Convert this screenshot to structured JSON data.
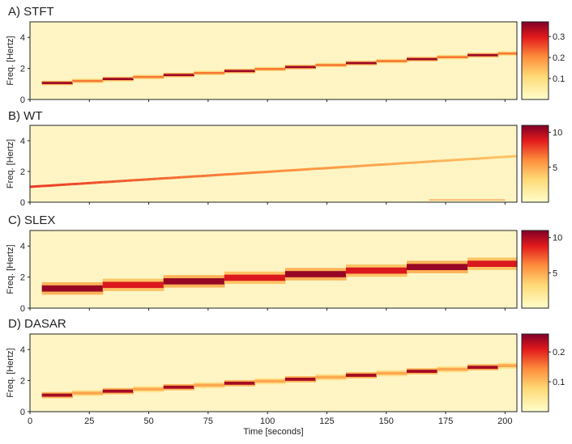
{
  "chart_data": [
    {
      "type": "heatmap",
      "title": "A) STFT",
      "ylabel": "Freq. [Hertz]",
      "yticks": [
        0,
        2,
        4
      ],
      "ylim": [
        0,
        5
      ],
      "xlim": [
        0,
        205
      ],
      "ridge": {
        "kind": "steps",
        "step_width": 12.8,
        "start_freq": 1.0,
        "end_freq": 3.0,
        "thickness_hz": 0.14,
        "max_intensity": 0.35,
        "alt_intensity": 0.22
      },
      "colorbar": {
        "min": 0,
        "max": 0.37,
        "ticks": [
          {
            "value": 0.1,
            "label": "0.1"
          },
          {
            "value": 0.2,
            "label": "0.2"
          },
          {
            "value": 0.3,
            "label": "0.3"
          }
        ]
      }
    },
    {
      "type": "heatmap",
      "title": "B) WT",
      "ylabel": "Freq. [Hertz]",
      "yticks": [
        0,
        2,
        4
      ],
      "ylim": [
        0,
        5
      ],
      "xlim": [
        0,
        205
      ],
      "ridge": {
        "kind": "smooth",
        "start_freq": 1.0,
        "end_freq": 3.0,
        "thickness_hz": 0.12,
        "max_intensity": 8,
        "end_intensity": 4
      },
      "colorbar": {
        "min": 0,
        "max": 11,
        "ticks": [
          {
            "value": 5,
            "label": "5"
          },
          {
            "value": 10,
            "label": "10"
          }
        ]
      }
    },
    {
      "type": "heatmap",
      "title": "C) SLEX",
      "ylabel": "Freq. [Hertz]",
      "yticks": [
        0,
        2,
        4
      ],
      "ylim": [
        0,
        5
      ],
      "xlim": [
        0,
        205
      ],
      "ridge": {
        "kind": "steps",
        "step_width": 25.6,
        "start_freq": 1.15,
        "end_freq": 2.95,
        "thickness_hz": 0.4,
        "max_intensity": 10.5,
        "alt_intensity": 9
      },
      "colorbar": {
        "min": 0,
        "max": 11,
        "ticks": [
          {
            "value": 5,
            "label": "5"
          },
          {
            "value": 10,
            "label": "10"
          }
        ]
      }
    },
    {
      "type": "heatmap",
      "title": "D) DASAR",
      "ylabel": "Freq. [Hertz]",
      "yticks": [
        0,
        2,
        4
      ],
      "ylim": [
        0,
        5
      ],
      "xlim": [
        0,
        205
      ],
      "ridge": {
        "kind": "steps",
        "step_width": 12.8,
        "start_freq": 1.0,
        "end_freq": 3.0,
        "thickness_hz": 0.2,
        "max_intensity": 0.24,
        "alt_intensity": 0.12
      },
      "colorbar": {
        "min": 0,
        "max": 0.26,
        "ticks": [
          {
            "value": 0.1,
            "label": "0.1"
          },
          {
            "value": 0.2,
            "label": "0.2"
          }
        ]
      }
    }
  ],
  "xaxis": {
    "label": "Time [seconds]",
    "ticks": [
      0,
      25,
      50,
      75,
      100,
      125,
      150,
      175,
      200
    ]
  },
  "colors": {
    "low": "#ffffcc",
    "mid1": "#fed976",
    "mid2": "#fd8d3c",
    "mid3": "#e31a1c",
    "high": "#800026",
    "background": "#fff5c4"
  }
}
